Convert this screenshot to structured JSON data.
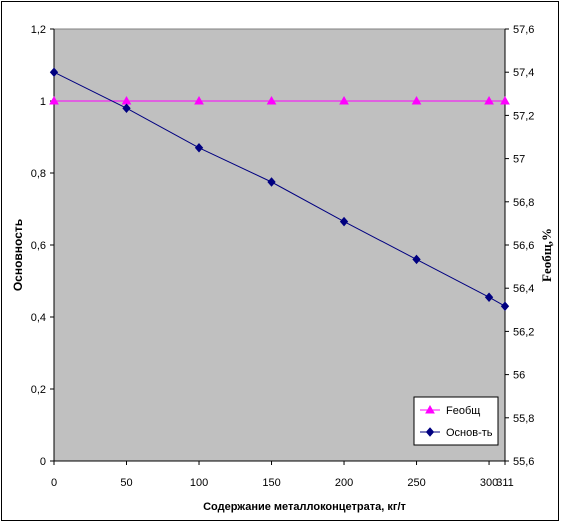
{
  "chart_data": {
    "type": "line",
    "x": [
      0,
      50,
      100,
      150,
      200,
      250,
      300,
      311
    ],
    "x_tick_labels": [
      "0",
      "50",
      "100",
      "150",
      "200",
      "250",
      "300",
      "311"
    ],
    "xlabel": "Содержание металлоконцетрата, кг/т",
    "ylabel_left": "Основность",
    "ylabel_right": "Feобщ,%",
    "ylim_left": [
      0,
      1.2
    ],
    "ylim_right": [
      55.6,
      57.6
    ],
    "y_ticks_left": [
      "0",
      "0,2",
      "0,4",
      "0,6",
      "0,8",
      "1",
      "1,2"
    ],
    "y_ticks_right": [
      "55,6",
      "55,8",
      "56",
      "56,2",
      "56,4",
      "56,6",
      "56,8",
      "57",
      "57,2",
      "57,4",
      "57,6"
    ],
    "series": [
      {
        "name": "Feобщ",
        "axis": "left",
        "color": "#ff00ff",
        "marker": "triangle",
        "values": [
          1,
          1,
          1,
          1,
          1,
          1,
          1,
          1
        ]
      },
      {
        "name": "Основ-ть",
        "axis": "left",
        "color": "#000080",
        "marker": "diamond",
        "values": [
          1.08,
          0.98,
          0.87,
          0.775,
          0.665,
          0.56,
          0.455,
          0.43
        ]
      }
    ],
    "plot_background": "#c0c0c0",
    "grid": false,
    "legend_position": "bottom-right"
  }
}
